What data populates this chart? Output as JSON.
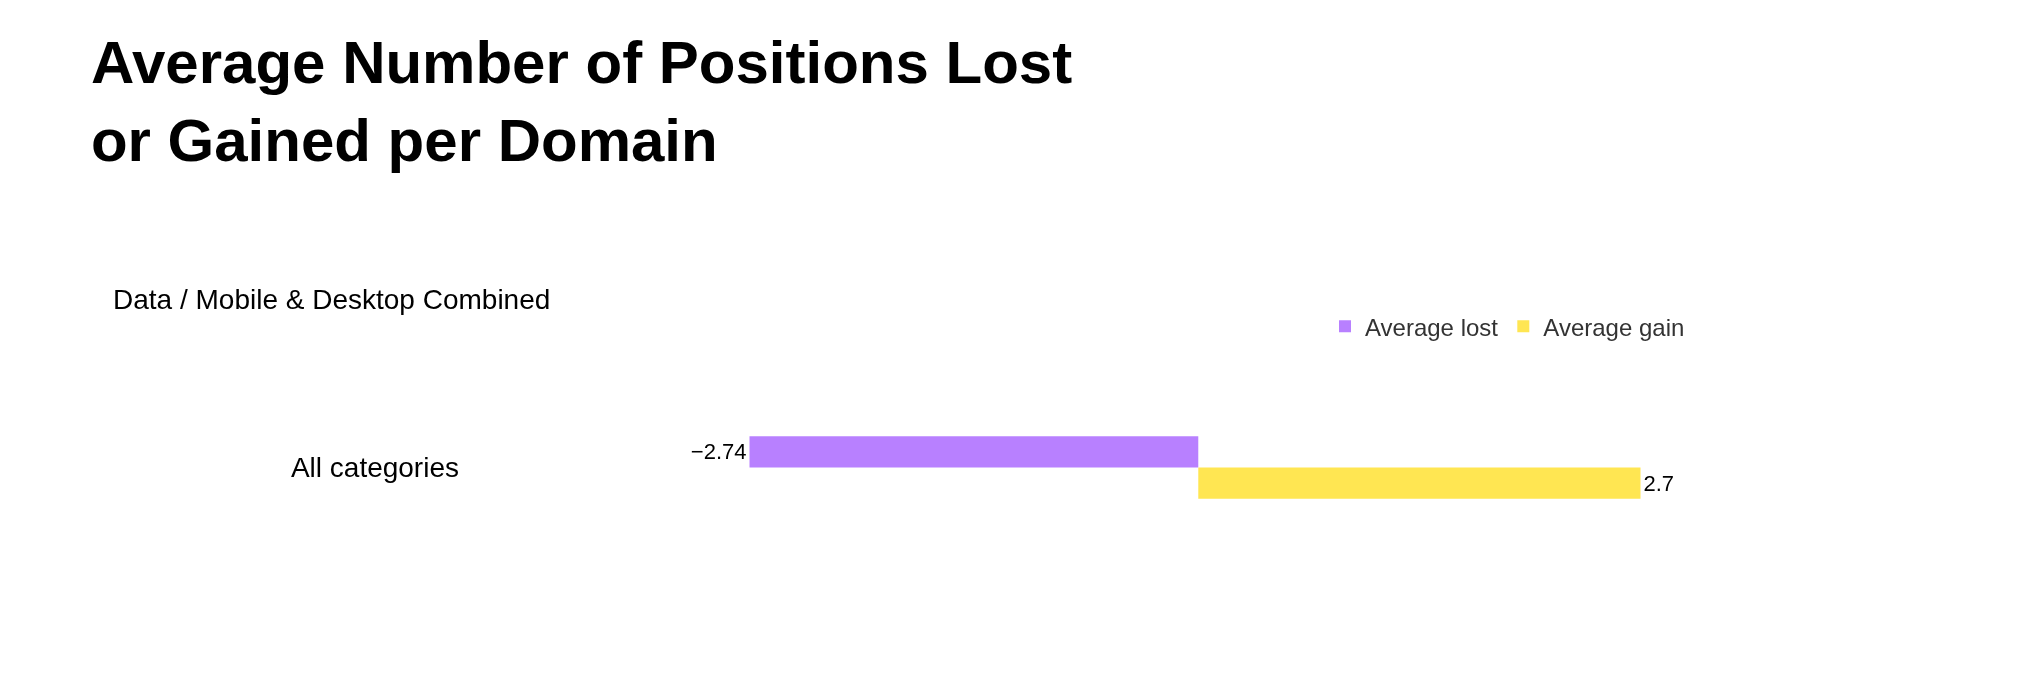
{
  "chart_data": {
    "type": "bar",
    "orientation": "horizontal",
    "title": "Average Number of Positions Lost\nor Gained per Domain",
    "subtitle": "Data / Mobile & Desktop Combined",
    "categories": [
      "All categories"
    ],
    "series": [
      {
        "name": "Average lost",
        "color": "#b880ff",
        "values": [
          -2.74
        ],
        "value_labels": [
          "−2.74"
        ]
      },
      {
        "name": "Average gain",
        "color": "#ffe652",
        "values": [
          2.7
        ],
        "value_labels": [
          "2.7"
        ]
      }
    ],
    "legend": "top right",
    "tick_labels": "y"
  }
}
